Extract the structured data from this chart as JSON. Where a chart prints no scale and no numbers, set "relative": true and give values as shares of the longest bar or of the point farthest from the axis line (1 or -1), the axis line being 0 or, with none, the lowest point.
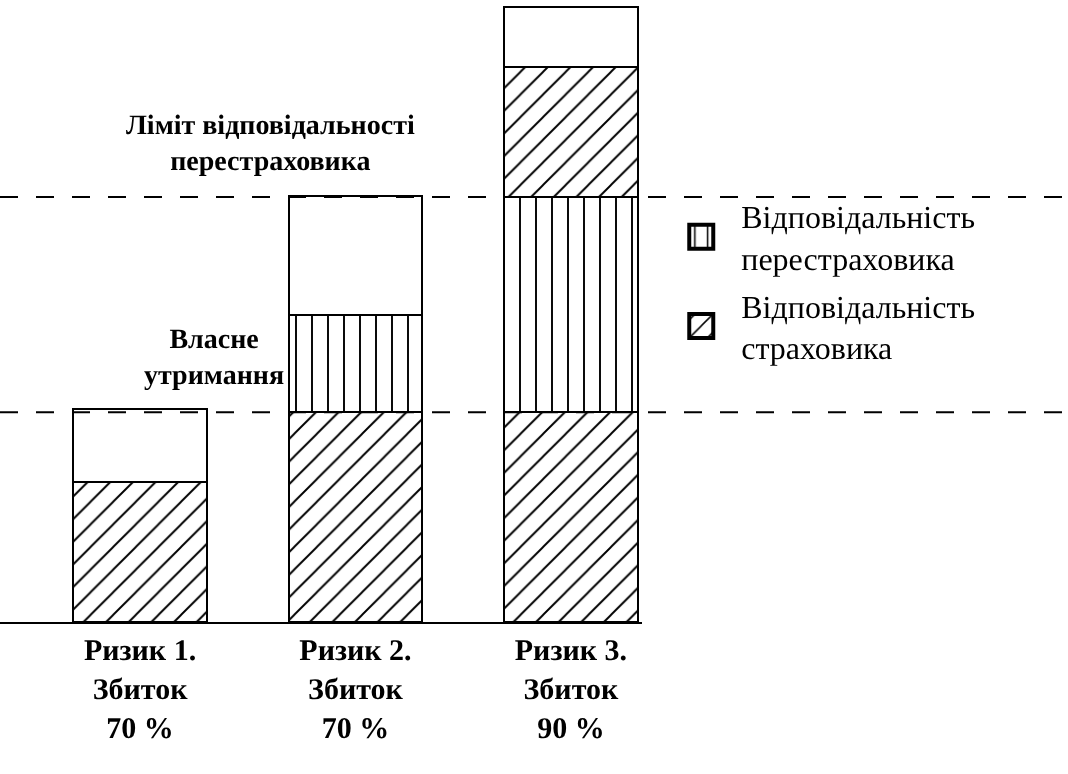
{
  "chart_data": {
    "type": "bar",
    "stacked": true,
    "relative": true,
    "categories": [
      "Ризик 1.\nЗбиток\n70 %",
      "Ризик 2.\nЗбиток\n70 %",
      "Ризик 3.\nЗбиток\n90 %"
    ],
    "series": [
      {
        "name": "Відповідальність\nстраховика",
        "color": "#000000",
        "values": [
          0.228,
          0.341,
          0.341
        ]
      },
      {
        "name": "Відповідальність\nперестраховика",
        "color": "#000000",
        "values": [
          null,
          0.158,
          0.35
        ]
      },
      {
        "color": "#000000",
        "values": [
          null,
          null,
          0.212
        ]
      },
      {
        "color": "#ffffff",
        "values": [
          0.119,
          0.193,
          0.097
        ]
      }
    ],
    "ref_lines": [
      {
        "axis": "y",
        "value": 0.341,
        "label": "Власне\nутримання",
        "line_style": "dashed",
        "color": "#000000"
      },
      {
        "axis": "y",
        "value": 0.691,
        "label": "Ліміт відповідальності\nперестраховика",
        "line_style": "dashed",
        "color": "#000000"
      }
    ],
    "legend": "right",
    "grid": false
  }
}
